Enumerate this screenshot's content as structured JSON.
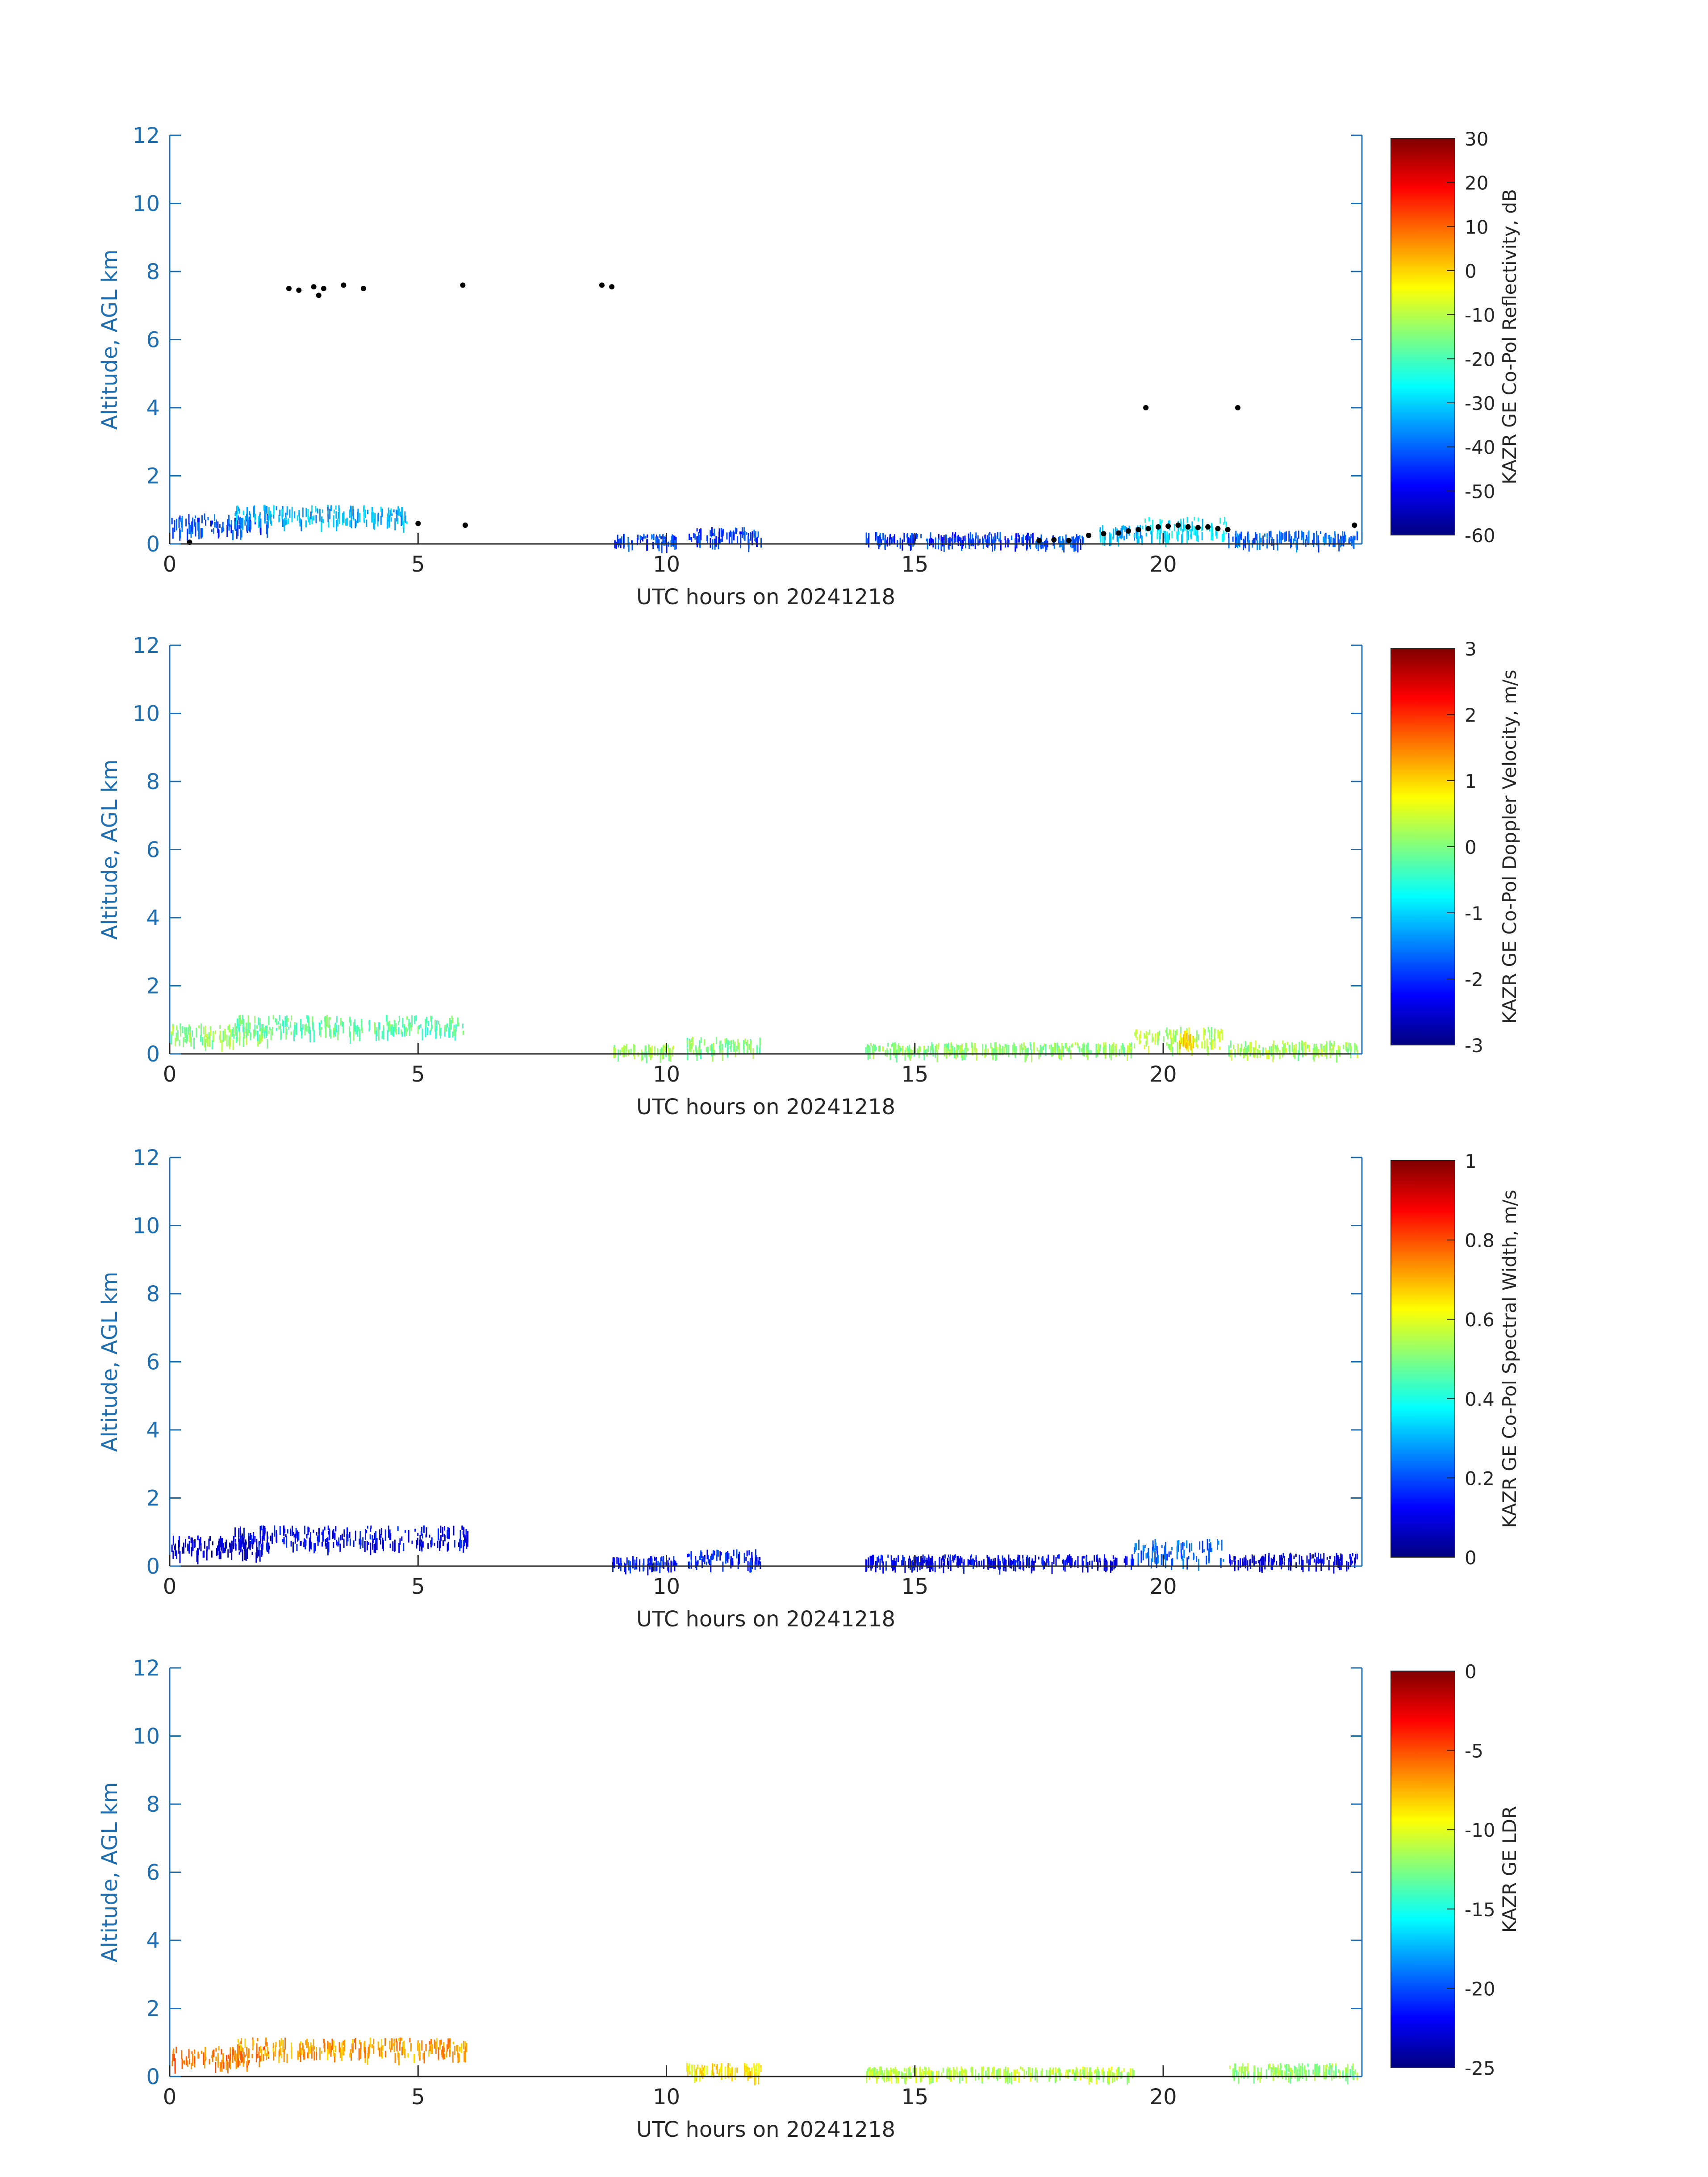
{
  "chart_data": [
    {
      "type": "heatmap",
      "title": "",
      "xlabel": "UTC hours on 20241218",
      "ylabel": "Altitude, AGL km",
      "xlim": [
        0,
        24
      ],
      "ylim": [
        0,
        12
      ],
      "xticks": [
        "0",
        "5",
        "10",
        "15",
        "20"
      ],
      "yticks": [
        "0",
        "2",
        "4",
        "6",
        "8",
        "10",
        "12"
      ],
      "colorbar": {
        "label": "KAZR GE Co-Pol Reflectivity, dB",
        "range": [
          -60,
          30
        ],
        "ticks": [
          "-60",
          "-50",
          "-40",
          "-30",
          "-20",
          "-10",
          "0",
          "10",
          "20",
          "30"
        ],
        "colormap": "jet"
      },
      "echoes": [
        {
          "x": [
            0,
            2
          ],
          "y": [
            0.4,
            0.9
          ],
          "value": -42
        },
        {
          "x": [
            1.3,
            4.8
          ],
          "y": [
            0.65,
            1.15
          ],
          "value": -33
        },
        {
          "x": [
            8.9,
            10.2
          ],
          "y": [
            0.05,
            0.3
          ],
          "value": -43
        },
        {
          "x": [
            10.4,
            11.9
          ],
          "y": [
            0.1,
            0.5
          ],
          "value": -44
        },
        {
          "x": [
            14,
            17.4
          ],
          "y": [
            0.1,
            0.35
          ],
          "value": -44
        },
        {
          "x": [
            17.4,
            18.4
          ],
          "y": [
            0.05,
            0.3
          ],
          "value": -42
        },
        {
          "x": [
            18.7,
            19.6
          ],
          "y": [
            0.2,
            0.6
          ],
          "value": -33
        },
        {
          "x": [
            19.6,
            21.3
          ],
          "y": [
            0.25,
            0.8
          ],
          "value": -28
        },
        {
          "x": [
            21.3,
            23.9
          ],
          "y": [
            0.1,
            0.4
          ],
          "value": -40
        }
      ],
      "markers": [
        {
          "x": 2.4,
          "y": 7.5
        },
        {
          "x": 2.6,
          "y": 7.45
        },
        {
          "x": 2.9,
          "y": 7.55
        },
        {
          "x": 3.0,
          "y": 7.3
        },
        {
          "x": 3.1,
          "y": 7.5
        },
        {
          "x": 3.5,
          "y": 7.6
        },
        {
          "x": 3.9,
          "y": 7.5
        },
        {
          "x": 5.9,
          "y": 7.6
        },
        {
          "x": 8.7,
          "y": 7.6
        },
        {
          "x": 8.9,
          "y": 7.55
        },
        {
          "x": 0.4,
          "y": 0.05
        },
        {
          "x": 5.0,
          "y": 0.6
        },
        {
          "x": 5.95,
          "y": 0.55
        },
        {
          "x": 19.65,
          "y": 4.0
        },
        {
          "x": 21.5,
          "y": 4.0
        },
        {
          "x": 17.5,
          "y": 0.1
        },
        {
          "x": 17.8,
          "y": 0.12
        },
        {
          "x": 18.1,
          "y": 0.1
        },
        {
          "x": 18.5,
          "y": 0.25
        },
        {
          "x": 18.8,
          "y": 0.3
        },
        {
          "x": 19.1,
          "y": 0.32
        },
        {
          "x": 19.3,
          "y": 0.38
        },
        {
          "x": 19.5,
          "y": 0.42
        },
        {
          "x": 19.7,
          "y": 0.45
        },
        {
          "x": 19.9,
          "y": 0.5
        },
        {
          "x": 20.1,
          "y": 0.52
        },
        {
          "x": 20.3,
          "y": 0.55
        },
        {
          "x": 20.5,
          "y": 0.5
        },
        {
          "x": 20.7,
          "y": 0.48
        },
        {
          "x": 20.9,
          "y": 0.5
        },
        {
          "x": 21.1,
          "y": 0.45
        },
        {
          "x": 21.3,
          "y": 0.42
        },
        {
          "x": 23.85,
          "y": 0.55
        }
      ]
    },
    {
      "type": "heatmap",
      "title": "",
      "xlabel": "UTC hours on 20241218",
      "ylabel": "Altitude, AGL km",
      "xlim": [
        0,
        24
      ],
      "ylim": [
        0,
        12
      ],
      "xticks": [
        "0",
        "5",
        "10",
        "15",
        "20"
      ],
      "yticks": [
        "0",
        "2",
        "4",
        "6",
        "8",
        "10",
        "12"
      ],
      "colorbar": {
        "label": "KAZR GE Co-Pol Doppler Velocity, m/s",
        "range": [
          -3,
          3
        ],
        "ticks": [
          "-3",
          "-2",
          "-1",
          "0",
          "1",
          "2",
          "3"
        ],
        "colormap": "jet"
      },
      "echoes": [
        {
          "x": [
            0,
            2
          ],
          "y": [
            0.4,
            0.9
          ],
          "value": 0.1
        },
        {
          "x": [
            1.3,
            5.9
          ],
          "y": [
            0.65,
            1.15
          ],
          "value": -0.2
        },
        {
          "x": [
            8.9,
            10.2
          ],
          "y": [
            0.05,
            0.3
          ],
          "value": 0.2
        },
        {
          "x": [
            10.4,
            11.9
          ],
          "y": [
            0.1,
            0.5
          ],
          "value": 0.0
        },
        {
          "x": [
            14,
            19.4
          ],
          "y": [
            0.1,
            0.35
          ],
          "value": 0.1
        },
        {
          "x": [
            19.4,
            21.2
          ],
          "y": [
            0.2,
            0.8
          ],
          "value": 0.3
        },
        {
          "x": [
            20.3,
            20.6
          ],
          "y": [
            0.3,
            0.7
          ],
          "value": 0.9
        },
        {
          "x": [
            21.3,
            23.9
          ],
          "y": [
            0.1,
            0.4
          ],
          "value": 0.2
        }
      ]
    },
    {
      "type": "heatmap",
      "title": "",
      "xlabel": "UTC hours on 20241218",
      "ylabel": "Altitude, AGL km",
      "xlim": [
        0,
        24
      ],
      "ylim": [
        0,
        12
      ],
      "xticks": [
        "0",
        "5",
        "10",
        "15",
        "20"
      ],
      "yticks": [
        "0",
        "2",
        "4",
        "6",
        "8",
        "10",
        "12"
      ],
      "colorbar": {
        "label": "KAZR GE Co-Pol Spectral Width, m/s",
        "range": [
          0,
          1
        ],
        "ticks": [
          "0",
          "0.2",
          "0.4",
          "0.6",
          "0.8",
          "1"
        ],
        "colormap": "jet"
      },
      "echoes": [
        {
          "x": [
            0,
            2
          ],
          "y": [
            0.4,
            0.9
          ],
          "value": 0.08
        },
        {
          "x": [
            1.3,
            6.0
          ],
          "y": [
            0.65,
            1.2
          ],
          "value": 0.12
        },
        {
          "x": [
            8.9,
            10.2
          ],
          "y": [
            0.05,
            0.3
          ],
          "value": 0.15
        },
        {
          "x": [
            10.4,
            11.9
          ],
          "y": [
            0.1,
            0.5
          ],
          "value": 0.15
        },
        {
          "x": [
            14,
            19.4
          ],
          "y": [
            0.1,
            0.35
          ],
          "value": 0.12
        },
        {
          "x": [
            19.4,
            21.2
          ],
          "y": [
            0.2,
            0.8
          ],
          "value": 0.22
        },
        {
          "x": [
            21.3,
            23.9
          ],
          "y": [
            0.1,
            0.4
          ],
          "value": 0.1
        }
      ]
    },
    {
      "type": "heatmap",
      "title": "",
      "xlabel": "UTC hours on 20241218",
      "ylabel": "Altitude, AGL km",
      "xlim": [
        0,
        24
      ],
      "ylim": [
        0,
        12
      ],
      "xticks": [
        "0",
        "5",
        "10",
        "15",
        "20"
      ],
      "yticks": [
        "0",
        "2",
        "4",
        "6",
        "8",
        "10",
        "12"
      ],
      "colorbar": {
        "label": "KAZR GE LDR",
        "range": [
          -25,
          0
        ],
        "ticks": [
          "-25",
          "-20",
          "-15",
          "-10",
          "-5",
          "0"
        ],
        "colormap": "jet"
      },
      "echoes": [
        {
          "x": [
            0,
            2
          ],
          "y": [
            0.4,
            0.9
          ],
          "value": -6
        },
        {
          "x": [
            1.3,
            6.0
          ],
          "y": [
            0.65,
            1.15
          ],
          "value": -7
        },
        {
          "x": [
            10.4,
            11.9
          ],
          "y": [
            0.1,
            0.4
          ],
          "value": -9
        },
        {
          "x": [
            14,
            19.4
          ],
          "y": [
            0.1,
            0.3
          ],
          "value": -11
        },
        {
          "x": [
            21.3,
            23.9
          ],
          "y": [
            0.1,
            0.4
          ],
          "value": -12
        }
      ]
    }
  ]
}
